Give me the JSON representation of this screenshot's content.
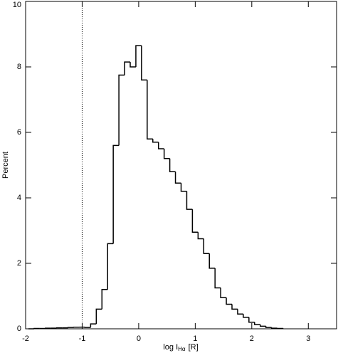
{
  "chart_data": {
    "type": "histogram",
    "xlabel": {
      "text": "log I",
      "subscript": "Hα",
      "suffix": "[R]"
    },
    "ylabel": "Percent",
    "bins": [
      -1.95,
      -1.85,
      -1.75,
      -1.65,
      -1.55,
      -1.45,
      -1.35,
      -1.25,
      -1.15,
      -1.05,
      -0.95,
      -0.85,
      -0.75,
      -0.65,
      -0.55,
      -0.45,
      -0.35,
      -0.25,
      -0.15,
      -0.05,
      0.05,
      0.15,
      0.25,
      0.35,
      0.45,
      0.55,
      0.65,
      0.75,
      0.85,
      0.95,
      1.05,
      1.15,
      1.25,
      1.35,
      1.45,
      1.55,
      1.65,
      1.75,
      1.85,
      1.95,
      2.05,
      2.15,
      2.25,
      2.35,
      2.45,
      2.55
    ],
    "values": [
      0,
      0.01,
      0.01,
      0.02,
      0.02,
      0.03,
      0.03,
      0.04,
      0.05,
      0.05,
      0.04,
      0.15,
      0.6,
      1.2,
      2.6,
      5.6,
      7.75,
      8.15,
      8.0,
      8.65,
      7.6,
      5.8,
      5.7,
      5.5,
      5.2,
      4.8,
      4.45,
      4.2,
      3.65,
      2.95,
      2.75,
      2.3,
      1.85,
      1.25,
      0.95,
      0.75,
      0.6,
      0.45,
      0.35,
      0.2,
      0.13,
      0.08,
      0.04,
      0.02,
      0.01
    ],
    "color": "#000000",
    "reference_line": -1,
    "xlim": [
      -2,
      3.5
    ],
    "xticks": [
      -2,
      -1,
      0,
      1,
      2,
      3
    ],
    "ylim": [
      0,
      10
    ],
    "yticks": [
      0,
      2,
      4,
      6,
      8,
      10
    ]
  }
}
